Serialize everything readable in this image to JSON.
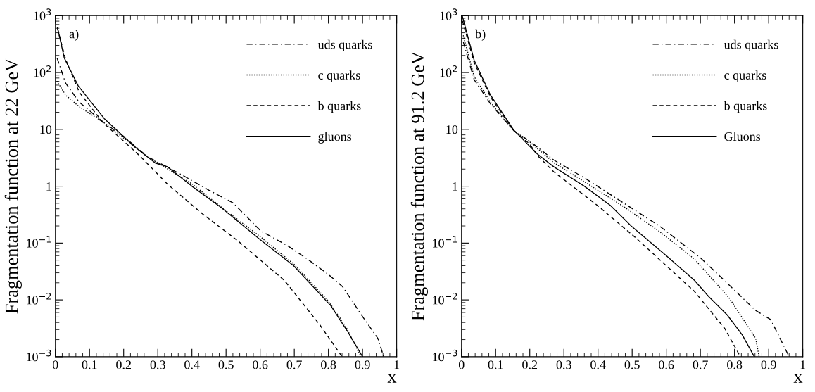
{
  "chart_data": [
    {
      "type": "line",
      "ylabel": "Fragmentation function at 22 GeV",
      "xlabel": "x",
      "annotations": [
        "a)"
      ],
      "log": "y",
      "legend": "top right",
      "xlim": [
        0,
        1
      ],
      "ylim": [
        0.001,
        1000
      ],
      "xticks": [
        0,
        0.1,
        0.2,
        0.3,
        0.4,
        0.5,
        0.6,
        0.7,
        0.8,
        0.9,
        1
      ],
      "yticks": [
        {
          "value": 0.001,
          "label": "10$^{−3}$"
        },
        {
          "value": 0.01,
          "label": "10$^{−2}$"
        },
        {
          "value": 0.1,
          "label": "10$^{−1}$"
        },
        1,
        10,
        {
          "value": 100,
          "label": "10$^{2}$"
        },
        {
          "value": 1000,
          "label": "10$^{3}$"
        }
      ],
      "series": [
        {
          "name": "uds quarks",
          "color": "#000000",
          "line_style": "dashdot",
          "x": [
            0.005,
            0.03,
            0.07,
            0.143,
            0.2,
            0.27,
            0.369,
            0.45,
            0.52,
            0.602,
            0.68,
            0.739,
            0.8,
            0.842,
            0.897,
            0.945,
            0.962
          ],
          "values": [
            180,
            65,
            30,
            13,
            7.5,
            3.3,
            1.6,
            0.85,
            0.51,
            0.163,
            0.09,
            0.052,
            0.028,
            0.017,
            0.0054,
            0.0021,
            0.001
          ]
        },
        {
          "name": "c quarks",
          "color": "#000000",
          "line_style": "dotted",
          "x": [
            0.005,
            0.03,
            0.07,
            0.143,
            0.2,
            0.27,
            0.4,
            0.5,
            0.6,
            0.7,
            0.8,
            0.85,
            0.895
          ],
          "values": [
            70,
            40,
            25,
            13,
            7,
            3.3,
            1.1,
            0.37,
            0.13,
            0.042,
            0.0095,
            0.0035,
            0.001
          ]
        },
        {
          "name": "b quarks",
          "color": "#000000",
          "line_style": "dashed",
          "x": [
            0.006,
            0.03,
            0.07,
            0.14,
            0.2,
            0.25,
            0.328,
            0.43,
            0.534,
            0.671,
            0.774,
            0.84
          ],
          "values": [
            600,
            170,
            45,
            13,
            6.2,
            3.3,
            1.09,
            0.33,
            0.11,
            0.022,
            0.0037,
            0.001
          ]
        },
        {
          "name": "gluons",
          "color": "#000000",
          "line_style": "solid",
          "x": [
            0.006,
            0.026,
            0.067,
            0.143,
            0.231,
            0.293,
            0.328,
            0.4,
            0.486,
            0.6,
            0.698,
            0.807,
            0.856,
            0.9
          ],
          "values": [
            620,
            180,
            58,
            15.5,
            5.0,
            2.55,
            2.2,
            1.0,
            0.42,
            0.115,
            0.04,
            0.0079,
            0.0028,
            0.001
          ]
        }
      ]
    },
    {
      "type": "line",
      "ylabel": "Fragmentation function at 91.2 GeV",
      "xlabel": "x",
      "annotations": [
        "b)"
      ],
      "log": "y",
      "legend": "top right",
      "xlim": [
        0,
        1
      ],
      "ylim": [
        0.001,
        1000
      ],
      "xticks": [
        0,
        0.1,
        0.2,
        0.3,
        0.4,
        0.5,
        0.6,
        0.7,
        0.8,
        0.9,
        1
      ],
      "yticks": [
        {
          "value": 0.001,
          "label": "10$^{−3}$"
        },
        {
          "value": 0.01,
          "label": "10$^{−2}$"
        },
        {
          "value": 0.1,
          "label": "10$^{−1}$"
        },
        1,
        10,
        {
          "value": 100,
          "label": "10$^{2}$"
        },
        {
          "value": 1000,
          "label": "10$^{3}$"
        }
      ],
      "series": [
        {
          "name": "uds quarks",
          "color": "#000000",
          "line_style": "dashdot",
          "x": [
            0.005,
            0.037,
            0.085,
            0.153,
            0.2,
            0.27,
            0.36,
            0.462,
            0.58,
            0.7,
            0.752,
            0.862,
            0.906,
            0.96
          ],
          "values": [
            350,
            75,
            28,
            9.5,
            6.2,
            2.9,
            1.4,
            0.57,
            0.2,
            0.055,
            0.028,
            0.0065,
            0.0045,
            0.001
          ]
        },
        {
          "name": "c quarks",
          "color": "#000000",
          "line_style": "dotted",
          "x": [
            0.005,
            0.037,
            0.085,
            0.153,
            0.2,
            0.27,
            0.36,
            0.477,
            0.58,
            0.683,
            0.786,
            0.862,
            0.872
          ],
          "values": [
            450,
            85,
            30,
            9.5,
            6,
            2.6,
            1.2,
            0.43,
            0.16,
            0.052,
            0.0105,
            0.0021,
            0.001
          ]
        },
        {
          "name": "b quarks",
          "color": "#000000",
          "line_style": "dashed",
          "x": [
            0.003,
            0.037,
            0.085,
            0.153,
            0.2,
            0.222,
            0.27,
            0.4,
            0.511,
            0.6,
            0.683,
            0.772,
            0.817
          ],
          "values": [
            800,
            150,
            37,
            9.5,
            5.5,
            3.5,
            1.8,
            0.45,
            0.123,
            0.04,
            0.014,
            0.0031,
            0.001
          ]
        },
        {
          "name": "Gluons",
          "color": "#000000",
          "line_style": "solid",
          "x": [
            0.002,
            0.037,
            0.085,
            0.153,
            0.222,
            0.27,
            0.36,
            0.436,
            0.497,
            0.6,
            0.683,
            0.724,
            0.779,
            0.823,
            0.858
          ],
          "values": [
            1000,
            165,
            40,
            9.7,
            3.7,
            2.2,
            1.0,
            0.46,
            0.2,
            0.06,
            0.022,
            0.0115,
            0.0054,
            0.0024,
            0.001
          ]
        }
      ]
    }
  ]
}
